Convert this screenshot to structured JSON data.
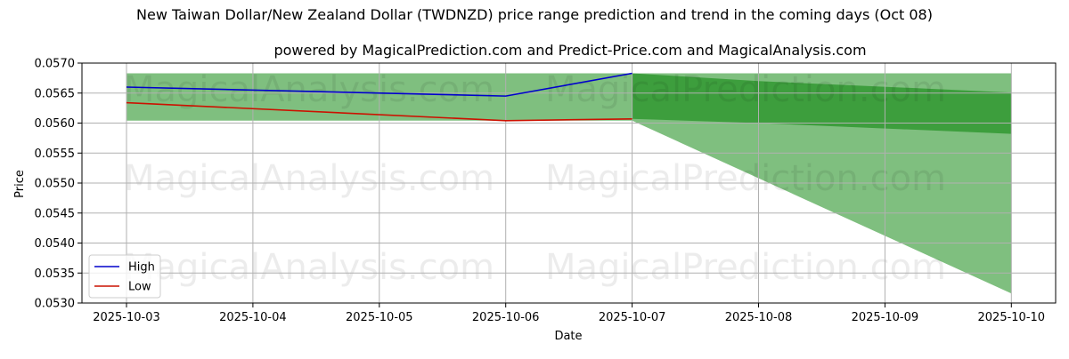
{
  "chart_data": {
    "type": "line",
    "title": "New Taiwan Dollar/New Zealand Dollar (TWDNZD) price range prediction and trend in the coming days (Oct 08)",
    "subtitle": "powered by MagicalPrediction.com and Predict-Price.com and MagicalAnalysis.com",
    "xlabel": "Date",
    "ylabel": "Price",
    "ylim": [
      0.053,
      0.057
    ],
    "x_ticks": [
      "2025-10-03",
      "2025-10-04",
      "2025-10-05",
      "2025-10-06",
      "2025-10-07",
      "2025-10-08",
      "2025-10-09",
      "2025-10-10"
    ],
    "y_ticks": [
      "0.0530",
      "0.0535",
      "0.0540",
      "0.0545",
      "0.0550",
      "0.0555",
      "0.0560",
      "0.0565",
      "0.0570"
    ],
    "grid": true,
    "legend_position": "lower-left",
    "series": [
      {
        "name": "High",
        "color": "#0000cc",
        "points": [
          {
            "x": "2025-10-03",
            "y": 0.0566
          },
          {
            "x": "2025-10-06",
            "y": 0.05645
          },
          {
            "x": "2025-10-07",
            "y": 0.05683
          }
        ]
      },
      {
        "name": "Low",
        "color": "#cc1100",
        "points": [
          {
            "x": "2025-10-03",
            "y": 0.05634
          },
          {
            "x": "2025-10-06",
            "y": 0.05604
          },
          {
            "x": "2025-10-07",
            "y": 0.05607
          }
        ]
      }
    ],
    "bands": [
      {
        "color": "#7fbf7f",
        "points": [
          {
            "x": "2025-10-03",
            "low": 0.05604,
            "high": 0.05683
          },
          {
            "x": "2025-10-07",
            "low": 0.05604,
            "high": 0.05683
          }
        ]
      },
      {
        "color": "#7fbf7f",
        "points": [
          {
            "x": "2025-10-07",
            "low": 0.05604,
            "high": 0.05683
          },
          {
            "x": "2025-10-10",
            "low": 0.05316,
            "high": 0.05683
          }
        ]
      },
      {
        "color": "#3d9e3d",
        "points": [
          {
            "x": "2025-10-07",
            "low": 0.05607,
            "high": 0.05683
          },
          {
            "x": "2025-10-08",
            "low": 0.056,
            "high": 0.0567
          },
          {
            "x": "2025-10-10",
            "low": 0.05582,
            "high": 0.05651
          }
        ]
      }
    ],
    "watermarks": [
      "MagicalAnalysis.com",
      "MagicalPrediction.com",
      "MagicalAnalysis.com",
      "MagicalPrediction.com",
      "MagicalAnalysis.com",
      "MagicalPrediction.com"
    ]
  }
}
